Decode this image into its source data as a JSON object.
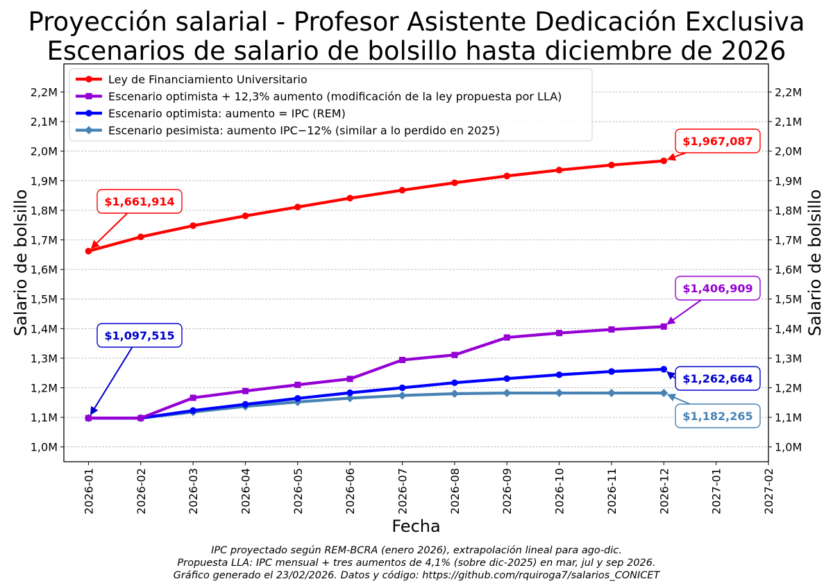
{
  "title_line1": "Proyección salarial - Profesor Asistente Dedicación Exclusiva",
  "title_line2": "Escenarios de salario de bolsillo hasta diciembre de 2026",
  "footnotes": [
    "IPC proyectado según REM-BCRA (enero 2026), extrapolación lineal para ago-dic.",
    "Propuesta LLA: IPC mensual + tres aumentos de 4,1% (sobre dic-2025) en mar, jul y sep 2026.",
    "Gráfico generado el 23/02/2026. Datos y código: https://github.com/rquiroga7/salarios_CONICET"
  ],
  "chart_data": {
    "type": "line",
    "xlabel": "Fecha",
    "ylabel": "Salario de bolsillo",
    "x_ticks": [
      "2026-01",
      "2026-02",
      "2026-03",
      "2026-04",
      "2026-05",
      "2026-06",
      "2026-07",
      "2026-08",
      "2026-09",
      "2026-10",
      "2026-11",
      "2026-12",
      "2027-01",
      "2027-02"
    ],
    "xlim": [
      -0.47,
      13
    ],
    "ylim": [
      950000,
      2295000
    ],
    "y_ticks": [
      1000000,
      1100000,
      1200000,
      1300000,
      1400000,
      1500000,
      1600000,
      1700000,
      1800000,
      1900000,
      2000000,
      2100000,
      2200000
    ],
    "y_tick_labels": [
      "1,0M",
      "1,1M",
      "1,2M",
      "1,3M",
      "1,4M",
      "1,5M",
      "1,6M",
      "1,7M",
      "1,8M",
      "1,9M",
      "2,0M",
      "2,1M",
      "2,2M"
    ],
    "grid": "horizontal dashed",
    "legend_position": "top-left",
    "series": [
      {
        "name": "Ley de Financiamiento Universitario",
        "color": "#ff0000",
        "marker": "circle",
        "values": [
          1661914,
          1710000,
          1748000,
          1781000,
          1811000,
          1841000,
          1868000,
          1893000,
          1916000,
          1936000,
          1953000,
          1967087
        ]
      },
      {
        "name": "Escenario optimista + 12,3% aumento (modificación de la ley propuesta por LLA)",
        "color": "#9400d3",
        "marker": "square",
        "values": [
          1097515,
          1097515,
          1166000,
          1189000,
          1210000,
          1230000,
          1294000,
          1311000,
          1370000,
          1385000,
          1397000,
          1406909
        ]
      },
      {
        "name": "Escenario optimista: aumento = IPC (REM)",
        "color": "#0000ff",
        "marker": "circle",
        "values": [
          1097515,
          1097515,
          1123000,
          1144000,
          1164000,
          1183000,
          1200000,
          1217000,
          1231000,
          1244000,
          1255000,
          1262664
        ]
      },
      {
        "name": "Escenario pesimista: aumento IPC−12% (similar a lo perdido en 2025)",
        "color": "#4682b4",
        "marker": "diamond",
        "values": [
          1097515,
          1097515,
          1118000,
          1137000,
          1152000,
          1165000,
          1174000,
          1180000,
          1182265,
          1182265,
          1182265,
          1182265
        ]
      }
    ],
    "annotations": [
      {
        "text": "$1,661,914",
        "color": "#ff0000",
        "series": 0,
        "x_index": 0
      },
      {
        "text": "$1,967,087",
        "color": "#ff0000",
        "series": 0,
        "x_index": 11
      },
      {
        "text": "$1,406,909",
        "color": "#9400d3",
        "series": 1,
        "x_index": 11
      },
      {
        "text": "$1,097,515",
        "color": "#0000cd",
        "series": 2,
        "x_index": 0
      },
      {
        "text": "$1,262,664",
        "color": "#0000cd",
        "series": 2,
        "x_index": 11
      },
      {
        "text": "$1,182,265",
        "color": "#4682b4",
        "series": 3,
        "x_index": 11
      }
    ]
  }
}
